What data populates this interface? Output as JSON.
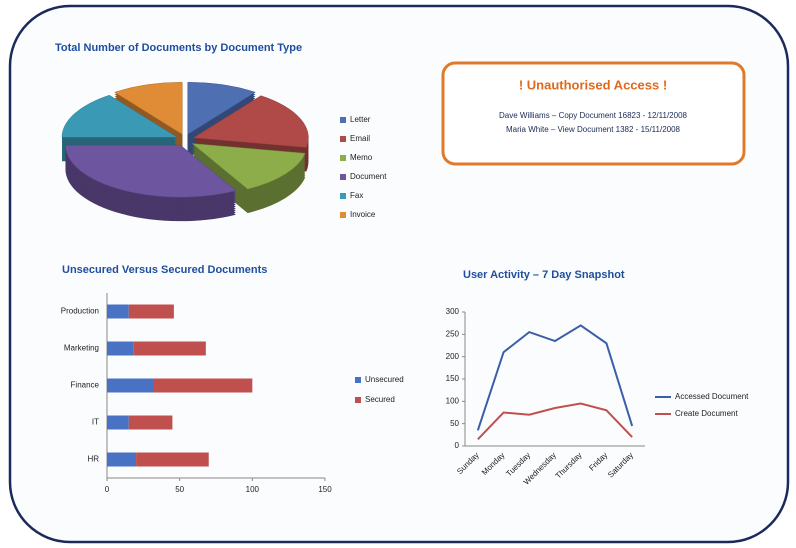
{
  "alert": {
    "title": "! Unauthorised Access !",
    "lines": [
      "Dave Williams – Copy Document 16823 - 12/11/2008",
      "Maria White – View Document 1382 - 15/11/2008"
    ]
  },
  "chart_data": [
    {
      "type": "pie",
      "title": "Total Number of Documents by Document Type",
      "categories": [
        "Letter",
        "Email",
        "Memo",
        "Document",
        "Fax",
        "Invoice"
      ],
      "values": [
        10,
        18,
        14,
        33,
        15,
        10
      ],
      "colors": [
        "#4f6fb3",
        "#b04a48",
        "#8cad4a",
        "#6e55a0",
        "#3a9ab5",
        "#e08b35"
      ],
      "legend": "right"
    },
    {
      "type": "bar",
      "orientation": "horizontal",
      "stacked": true,
      "title": "Unsecured Versus Secured Documents",
      "categories": [
        "Production",
        "Marketing",
        "Finance",
        "IT",
        "HR"
      ],
      "series": [
        {
          "name": "Unsecured",
          "color": "#4a72c4",
          "values": [
            15,
            18,
            32,
            15,
            20
          ]
        },
        {
          "name": "Secured",
          "color": "#c0504d",
          "values": [
            31,
            50,
            68,
            30,
            50
          ]
        }
      ],
      "xlim": [
        0,
        150
      ],
      "xticks": [
        0,
        50,
        100,
        150
      ],
      "legend": "right"
    },
    {
      "type": "line",
      "title": "User Activity – 7 Day Snapshot",
      "categories": [
        "Sunday",
        "Monday",
        "Tuesday",
        "Wednesday",
        "Thursday",
        "Friday",
        "Saturday"
      ],
      "series": [
        {
          "name": "Accessed Document",
          "color": "#3a5fa8",
          "values": [
            35,
            210,
            255,
            235,
            270,
            230,
            45
          ]
        },
        {
          "name": "Create Document",
          "color": "#c0504d",
          "values": [
            15,
            75,
            70,
            85,
            95,
            80,
            20
          ]
        }
      ],
      "ylim": [
        0,
        300
      ],
      "yticks": [
        0,
        50,
        100,
        150,
        200,
        250,
        300
      ],
      "legend": "right"
    }
  ]
}
